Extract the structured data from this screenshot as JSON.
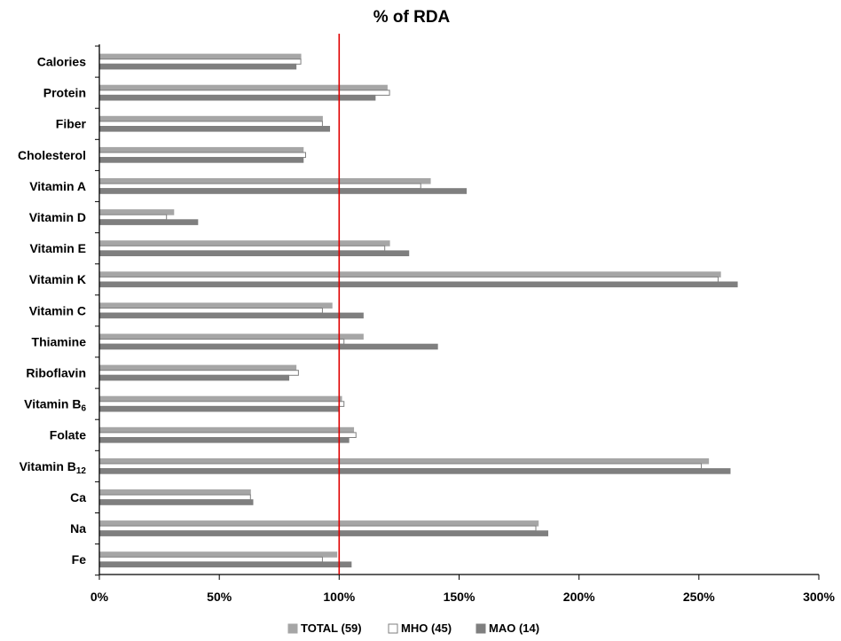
{
  "chart_data": {
    "type": "bar",
    "orientation": "horizontal",
    "title": "% of RDA",
    "xlabel": "",
    "ylabel": "",
    "xlim": [
      0,
      300
    ],
    "x_ticks": [
      "0%",
      "50%",
      "100%",
      "150%",
      "200%",
      "250%",
      "300%"
    ],
    "x_tick_values": [
      0,
      50,
      100,
      150,
      200,
      250,
      300
    ],
    "reference_line": {
      "value": 100,
      "color": "#e00000"
    },
    "grid": false,
    "legend_position": "bottom",
    "categories": [
      {
        "label": "Calories",
        "sub": ""
      },
      {
        "label": "Protein",
        "sub": ""
      },
      {
        "label": "Fiber",
        "sub": ""
      },
      {
        "label": "Cholesterol",
        "sub": ""
      },
      {
        "label": "Vitamin A",
        "sub": ""
      },
      {
        "label": "Vitamin D",
        "sub": ""
      },
      {
        "label": "Vitamin E",
        "sub": ""
      },
      {
        "label": "Vitamin K",
        "sub": ""
      },
      {
        "label": "Vitamin C",
        "sub": ""
      },
      {
        "label": "Thiamine",
        "sub": ""
      },
      {
        "label": "Riboflavin",
        "sub": ""
      },
      {
        "label": "Vitamin B",
        "sub": "6"
      },
      {
        "label": "Folate",
        "sub": ""
      },
      {
        "label": "Vitamin B",
        "sub": "12"
      },
      {
        "label": "Ca",
        "sub": ""
      },
      {
        "label": "Na",
        "sub": ""
      },
      {
        "label": "Fe",
        "sub": ""
      }
    ],
    "series": [
      {
        "name": "TOTAL (59)",
        "color": "#a6a6a6",
        "stroke": "#a6a6a6",
        "values": [
          84,
          120,
          93,
          85,
          138,
          31,
          121,
          259,
          97,
          110,
          82,
          101,
          106,
          254,
          63,
          183,
          99
        ]
      },
      {
        "name": "MHO (45)",
        "color": "#ffffff",
        "stroke": "#7f7f7f",
        "values": [
          84,
          121,
          93,
          86,
          134,
          28,
          119,
          258,
          93,
          102,
          83,
          102,
          107,
          251,
          63,
          182,
          93
        ]
      },
      {
        "name": "MAO (14)",
        "color": "#7f7f7f",
        "stroke": "#7f7f7f",
        "values": [
          82,
          115,
          96,
          85,
          153,
          41,
          129,
          266,
          110,
          141,
          79,
          100,
          104,
          263,
          64,
          187,
          105
        ]
      }
    ]
  }
}
